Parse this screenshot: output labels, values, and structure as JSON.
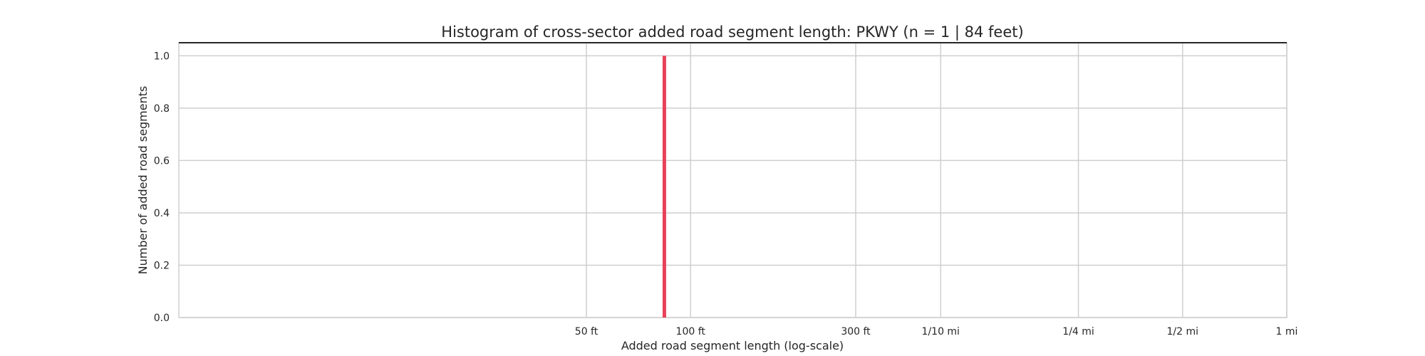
{
  "chart_data": {
    "type": "bar",
    "title": "Histogram of cross-sector added road segment length: PKWY (n = 1 | 84 feet)",
    "xlabel": "Added road segment length (log-scale)",
    "ylabel": "Number of added road segments",
    "x_scale": "log",
    "x_unit": "feet",
    "xlim": [
      1,
      5280
    ],
    "ylim": [
      0,
      1.05
    ],
    "x_ticks": [
      {
        "value": 50,
        "label": "50 ft"
      },
      {
        "value": 100,
        "label": "100 ft"
      },
      {
        "value": 300,
        "label": "300 ft"
      },
      {
        "value": 528,
        "label": "1/10 mi"
      },
      {
        "value": 1320,
        "label": "1/4 mi"
      },
      {
        "value": 2640,
        "label": "1/2 mi"
      },
      {
        "value": 5280,
        "label": "1 mi"
      }
    ],
    "y_ticks": [
      {
        "value": 0.0,
        "label": "0.0"
      },
      {
        "value": 0.2,
        "label": "0.2"
      },
      {
        "value": 0.4,
        "label": "0.4"
      },
      {
        "value": 0.6,
        "label": "0.6"
      },
      {
        "value": 0.8,
        "label": "0.8"
      },
      {
        "value": 1.0,
        "label": "1.0"
      }
    ],
    "bars": [
      {
        "x": 84,
        "count": 1
      }
    ],
    "grid": true,
    "bar_color": "#e8415a",
    "grid_color": "#cfcfcf"
  }
}
